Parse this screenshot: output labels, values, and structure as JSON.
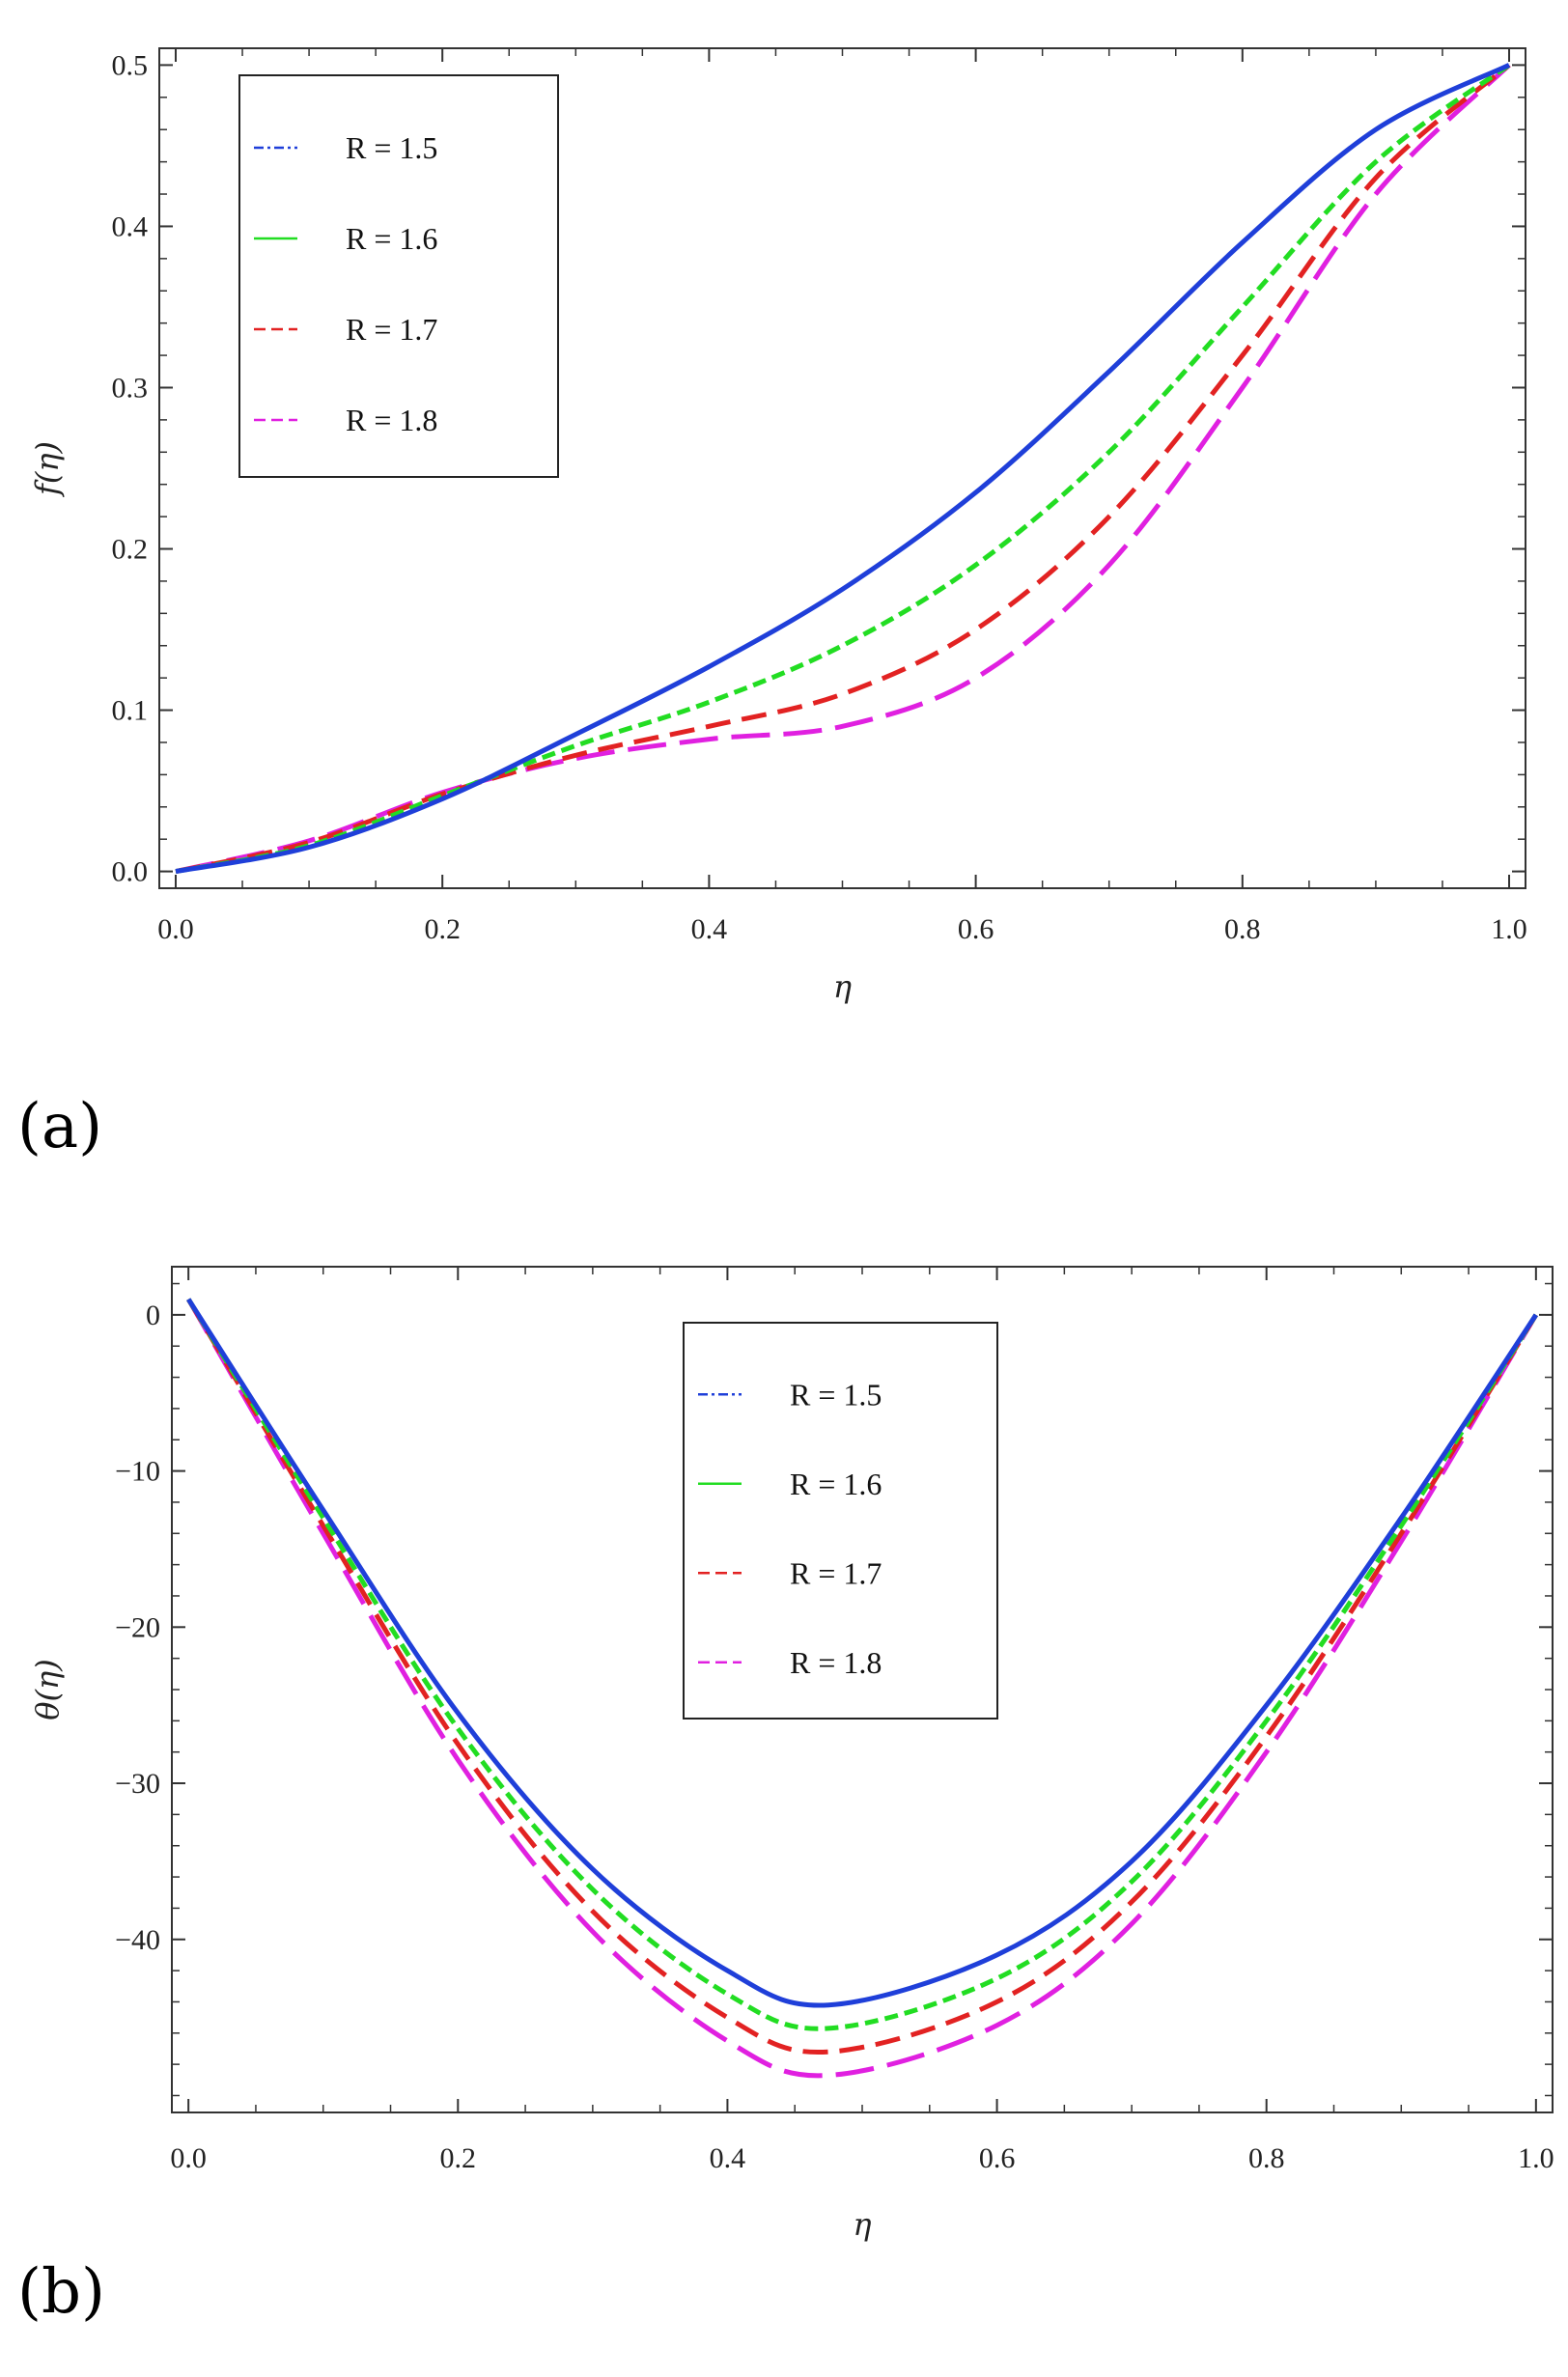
{
  "chart_data": [
    {
      "type": "line",
      "panel_label": "(a)",
      "xlabel": "η",
      "ylabel": "f(η)",
      "xlim": [
        0,
        1.0
      ],
      "ylim": [
        0,
        0.5
      ],
      "xticks": [
        "0.0",
        "0.2",
        "0.4",
        "0.6",
        "0.8",
        "1.0"
      ],
      "yticks": [
        "0.0",
        "0.1",
        "0.2",
        "0.3",
        "0.4",
        "0.5"
      ],
      "legend": {
        "placement": "top-left"
      },
      "series": [
        {
          "name": "R = 1.5",
          "color": "#1f3fd9",
          "style": "solid",
          "x": [
            0,
            0.1,
            0.2,
            0.3,
            0.4,
            0.5,
            0.6,
            0.7,
            0.8,
            0.9,
            1.0
          ],
          "y": [
            0,
            0.015,
            0.045,
            0.085,
            0.127,
            0.175,
            0.235,
            0.31,
            0.39,
            0.46,
            0.5
          ]
        },
        {
          "name": "R = 1.6",
          "color": "#22dd22",
          "style": "dashed",
          "x": [
            0,
            0.1,
            0.2,
            0.3,
            0.4,
            0.5,
            0.6,
            0.7,
            0.8,
            0.9,
            1.0
          ],
          "y": [
            0,
            0.016,
            0.047,
            0.078,
            0.105,
            0.14,
            0.19,
            0.26,
            0.35,
            0.44,
            0.5
          ]
        },
        {
          "name": "R = 1.7",
          "color": "#e22222",
          "style": "longdash",
          "x": [
            0,
            0.1,
            0.2,
            0.3,
            0.4,
            0.5,
            0.6,
            0.7,
            0.8,
            0.9,
            1.0
          ],
          "y": [
            0,
            0.018,
            0.048,
            0.072,
            0.09,
            0.11,
            0.15,
            0.22,
            0.32,
            0.43,
            0.5
          ]
        },
        {
          "name": "R = 1.8",
          "color": "#e020e0",
          "style": "longerdash",
          "x": [
            0,
            0.1,
            0.2,
            0.3,
            0.4,
            0.5,
            0.6,
            0.7,
            0.8,
            0.9,
            1.0
          ],
          "y": [
            0,
            0.019,
            0.049,
            0.07,
            0.082,
            0.09,
            0.12,
            0.19,
            0.3,
            0.42,
            0.5
          ]
        }
      ]
    },
    {
      "type": "line",
      "panel_label": "(b)",
      "xlabel": "η",
      "ylabel": "θ(η)",
      "xlim": [
        0,
        1.0
      ],
      "ylim": [
        -50,
        2
      ],
      "xticks": [
        "0.0",
        "0.2",
        "0.4",
        "0.6",
        "0.8",
        "1.0"
      ],
      "ytick_values": [
        0,
        -10,
        -20,
        -30,
        -40
      ],
      "yticks": [
        "0",
        "−10",
        "−20",
        "−30",
        "−40"
      ],
      "legend": {
        "placement": "top-center"
      },
      "series": [
        {
          "name": "R = 1.5",
          "color": "#1f3fd9",
          "style": "solid",
          "x": [
            0,
            0.1,
            0.2,
            0.3,
            0.4,
            0.475,
            0.6,
            0.7,
            0.8,
            0.9,
            1.0
          ],
          "y": [
            1,
            -12.5,
            -25.5,
            -35.5,
            -42,
            -44.2,
            -41,
            -35,
            -25,
            -13,
            0
          ]
        },
        {
          "name": "R = 1.6",
          "color": "#22dd22",
          "style": "dashed",
          "x": [
            0,
            0.1,
            0.2,
            0.3,
            0.4,
            0.475,
            0.6,
            0.7,
            0.8,
            0.9,
            1.0
          ],
          "y": [
            1,
            -13,
            -26.5,
            -36.8,
            -43.5,
            -45.7,
            -42.5,
            -36.3,
            -26,
            -13.5,
            0
          ]
        },
        {
          "name": "R = 1.7",
          "color": "#e22222",
          "style": "longdash",
          "x": [
            0,
            0.1,
            0.2,
            0.3,
            0.4,
            0.475,
            0.6,
            0.7,
            0.8,
            0.9,
            1.0
          ],
          "y": [
            1,
            -13.5,
            -27.5,
            -38.2,
            -45,
            -47.2,
            -44,
            -37.6,
            -27,
            -14,
            0
          ]
        },
        {
          "name": "R = 1.8",
          "color": "#e020e0",
          "style": "longerdash",
          "x": [
            0,
            0.1,
            0.2,
            0.3,
            0.4,
            0.475,
            0.6,
            0.7,
            0.8,
            0.9,
            1.0
          ],
          "y": [
            1,
            -14,
            -28.5,
            -39.5,
            -46.5,
            -48.7,
            -45.5,
            -39,
            -28,
            -14.5,
            0
          ]
        }
      ]
    }
  ]
}
